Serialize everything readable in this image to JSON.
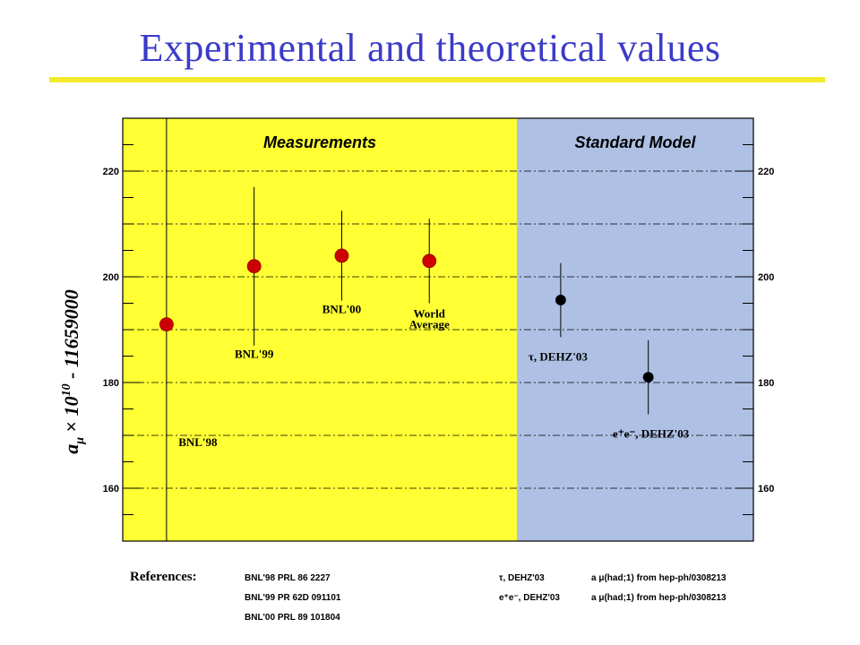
{
  "slide": {
    "title": "Experimental and theoretical values"
  },
  "chart_data": {
    "type": "scatter",
    "title": "",
    "ylabel": "a_μ × 10^10 - 11659000",
    "ylabel_parts": {
      "a": "a",
      "mu": "μ",
      "times": "×",
      "ten": "10",
      "exp": "10",
      "rest": " - 11659000"
    },
    "ylim": [
      150,
      230
    ],
    "yticks": [
      160,
      180,
      200,
      220
    ],
    "ytick_labels": [
      "160",
      "180",
      "200",
      "220"
    ],
    "grid": true,
    "regions": [
      {
        "label": "Measurements",
        "color": "#ffff33",
        "x_range": [
          0,
          4.5
        ]
      },
      {
        "label": "Standard Model",
        "color": "#aec0e4",
        "x_range": [
          4.5,
          7.2
        ]
      }
    ],
    "points": [
      {
        "label": "BNL'98",
        "x": 0.5,
        "y": 191,
        "err_low": 43,
        "err_high": 51,
        "color": "#cc0000"
      },
      {
        "label": "BNL'99",
        "x": 1.5,
        "y": 202,
        "err_low": 15,
        "err_high": 15,
        "color": "#cc0000"
      },
      {
        "label": "BNL'00",
        "x": 2.5,
        "y": 204,
        "err_low": 8.5,
        "err_high": 8.5,
        "color": "#cc0000"
      },
      {
        "label_lines": [
          "World",
          "Average"
        ],
        "x": 3.5,
        "y": 203,
        "err_low": 8,
        "err_high": 8,
        "color": "#cc0000"
      },
      {
        "label": "τ,  DEHZ'03",
        "x": 5.0,
        "y": 195.6,
        "err_low": 7,
        "err_high": 7,
        "color": "#000000"
      },
      {
        "label": "e⁺e⁻,  DEHZ'03",
        "x": 6.0,
        "y": 181,
        "err_low": 7,
        "err_high": 7,
        "color": "#000000"
      }
    ]
  },
  "references": {
    "heading": "References:",
    "left": [
      "BNL'98   PRL 86 2227",
      "BNL'99   PR 62D 091101",
      "BNL'00   PRL 89 101804"
    ],
    "right": [
      {
        "name": "τ, DEHZ'03",
        "detail": "a μ(had;1) from hep-ph/0308213"
      },
      {
        "name": "e⁺e⁻, DEHZ'03",
        "detail": "a μ(had;1) from hep-ph/0308213"
      }
    ]
  }
}
